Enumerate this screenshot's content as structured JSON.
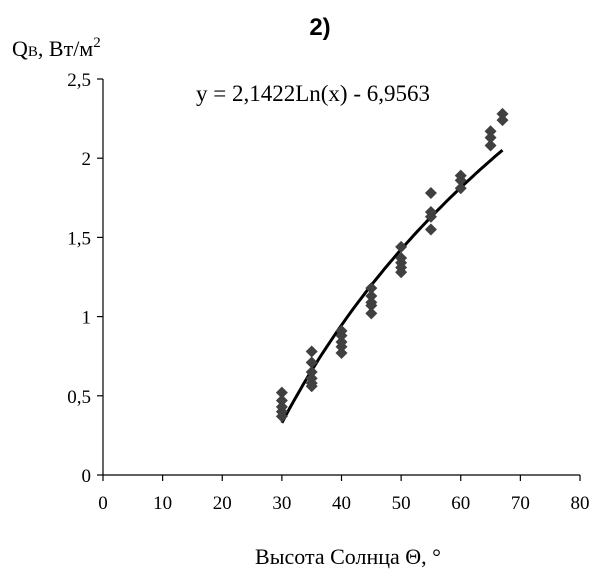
{
  "chart_data": {
    "type": "scatter",
    "panel_label": "2)",
    "title": "",
    "ylabel_main": "Q",
    "ylabel_sub": "B",
    "ylabel_rest": ", Вт/м",
    "ylabel_sup": "2",
    "xlabel": "Высота Солнца Θ, °",
    "xlim": [
      0,
      80
    ],
    "ylim": [
      0,
      2.5
    ],
    "x_ticks": [
      "0",
      "10",
      "20",
      "30",
      "40",
      "50",
      "60",
      "70",
      "80"
    ],
    "y_ticks": [
      "0",
      "0,5",
      "1",
      "1,5",
      "2",
      "2,5"
    ],
    "grid": false,
    "marker": "diamond",
    "marker_color": "#404040",
    "trend_color": "#000000",
    "points": [
      {
        "x": 30,
        "y": 0.52
      },
      {
        "x": 30,
        "y": 0.47
      },
      {
        "x": 30,
        "y": 0.43
      },
      {
        "x": 30,
        "y": 0.4
      },
      {
        "x": 30,
        "y": 0.37
      },
      {
        "x": 35,
        "y": 0.78
      },
      {
        "x": 35,
        "y": 0.71
      },
      {
        "x": 35,
        "y": 0.65
      },
      {
        "x": 35,
        "y": 0.61
      },
      {
        "x": 35,
        "y": 0.58
      },
      {
        "x": 35,
        "y": 0.56
      },
      {
        "x": 40,
        "y": 0.91
      },
      {
        "x": 40,
        "y": 0.88
      },
      {
        "x": 40,
        "y": 0.84
      },
      {
        "x": 40,
        "y": 0.81
      },
      {
        "x": 40,
        "y": 0.77
      },
      {
        "x": 45,
        "y": 1.18
      },
      {
        "x": 45,
        "y": 1.13
      },
      {
        "x": 45,
        "y": 1.09
      },
      {
        "x": 45,
        "y": 1.07
      },
      {
        "x": 45,
        "y": 1.02
      },
      {
        "x": 50,
        "y": 1.44
      },
      {
        "x": 50,
        "y": 1.37
      },
      {
        "x": 50,
        "y": 1.34
      },
      {
        "x": 50,
        "y": 1.31
      },
      {
        "x": 50,
        "y": 1.28
      },
      {
        "x": 55,
        "y": 1.78
      },
      {
        "x": 55,
        "y": 1.66
      },
      {
        "x": 55,
        "y": 1.63
      },
      {
        "x": 55,
        "y": 1.55
      },
      {
        "x": 60,
        "y": 1.89
      },
      {
        "x": 60,
        "y": 1.86
      },
      {
        "x": 60,
        "y": 1.81
      },
      {
        "x": 65,
        "y": 2.17
      },
      {
        "x": 65,
        "y": 2.13
      },
      {
        "x": 65,
        "y": 2.08
      },
      {
        "x": 67,
        "y": 2.28
      },
      {
        "x": 67,
        "y": 2.24
      }
    ],
    "trendline": {
      "equation": "y = 2,1422Ln(x) - 6,9563",
      "a": 2.1422,
      "b": -6.9563,
      "x_range": [
        30,
        67
      ]
    }
  }
}
